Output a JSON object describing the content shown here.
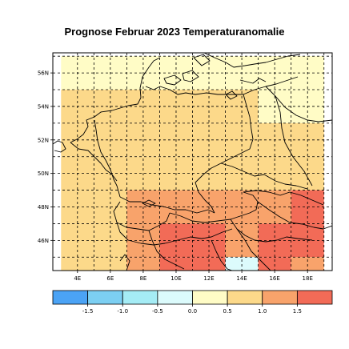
{
  "title": "Prognose Februar 2023 Temperaturanomalie",
  "map": {
    "lat_labels": [
      "56N",
      "54N",
      "52N",
      "50N",
      "48N",
      "46N"
    ],
    "lon_labels": [
      "4E",
      "6E",
      "8E",
      "10E",
      "12E",
      "14E",
      "16E",
      "18E"
    ],
    "lat_range": [
      44.2,
      57.2
    ],
    "lon_range": [
      2.5,
      19.5
    ]
  },
  "legend": {
    "tick_labels": [
      "-1.5",
      "-1.0",
      "-0.5",
      "0.0",
      "0.5",
      "1.0",
      "1.5"
    ],
    "bins": [
      {
        "min": -2.0,
        "max": -1.5,
        "color": "#4ba3f5"
      },
      {
        "min": -1.5,
        "max": -1.0,
        "color": "#7ccff2"
      },
      {
        "min": -1.0,
        "max": -0.5,
        "color": "#a5ecf5"
      },
      {
        "min": -0.5,
        "max": 0.0,
        "color": "#dcfbfc"
      },
      {
        "min": 0.0,
        "max": 0.5,
        "color": "#fffcc6"
      },
      {
        "min": 0.5,
        "max": 1.0,
        "color": "#fcd98a"
      },
      {
        "min": 1.0,
        "max": 1.5,
        "color": "#f8a36b"
      },
      {
        "min": 1.5,
        "max": 2.0,
        "color": "#f26b57"
      }
    ]
  },
  "anomaly_grid": {
    "lon_step": 2,
    "lat_step": 2,
    "rows": [
      {
        "lat_center": 56,
        "values": [
          0.25,
          0.25,
          0.25,
          0.25,
          0.25,
          0.25,
          0.25,
          0.25
        ]
      },
      {
        "lat_center": 54,
        "values": [
          0.75,
          0.75,
          0.75,
          0.75,
          0.75,
          0.75,
          0.25,
          0.25
        ]
      },
      {
        "lat_center": 52,
        "values": [
          0.75,
          0.75,
          0.75,
          0.75,
          0.75,
          0.75,
          0.75,
          0.75
        ]
      },
      {
        "lat_center": 50,
        "values": [
          0.75,
          0.75,
          0.75,
          0.75,
          0.75,
          0.75,
          0.75,
          0.75
        ]
      },
      {
        "lat_center": 48,
        "values": [
          0.75,
          0.75,
          1.25,
          1.25,
          1.25,
          1.25,
          1.25,
          1.75
        ]
      },
      {
        "lat_center": 46,
        "values": [
          0.75,
          0.75,
          1.25,
          1.75,
          1.75,
          1.25,
          1.75,
          1.75
        ]
      },
      {
        "lat_center": 44,
        "values": [
          0.75,
          0.75,
          1.25,
          1.75,
          1.75,
          -0.25,
          1.75,
          1.25
        ]
      }
    ]
  }
}
